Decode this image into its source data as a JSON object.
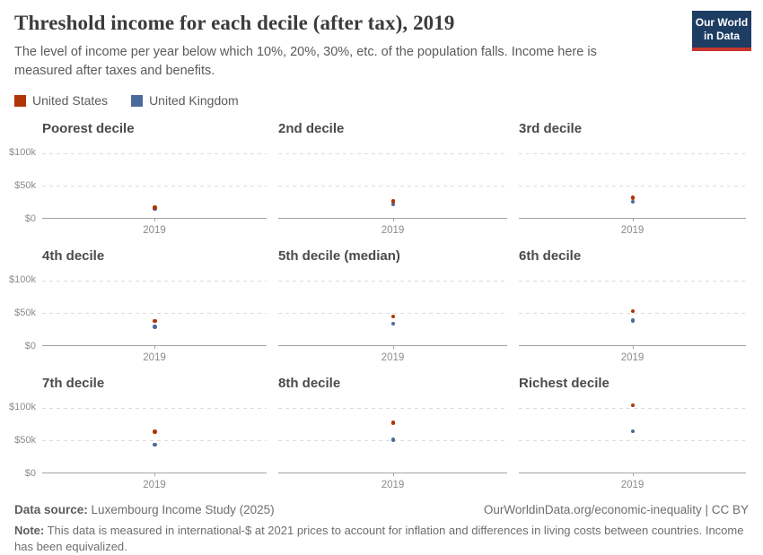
{
  "header": {
    "title": "Threshold income for each decile (after tax), 2019",
    "subtitle": "The level of income per year below which 10%, 20%, 30%, etc. of the population falls. Income here is measured after taxes and benefits.",
    "logo": {
      "line1": "Our World",
      "line2": "in Data",
      "bg_color": "#1d3d63",
      "accent_color": "#c8372d"
    }
  },
  "chart_data": {
    "type": "scatter",
    "title": "Threshold income for each decile (after tax), 2019",
    "x": [
      2019
    ],
    "x_tick_label": "2019",
    "y_tick_labels": [
      "$100k",
      "$50k",
      "$0"
    ],
    "y_tick_values": [
      100000,
      50000,
      0
    ],
    "ylim": [
      0,
      111000
    ],
    "grid": "horizontal-dashed",
    "legend_position": "top-left",
    "units": "international-$ per year",
    "series": [
      {
        "name": "United States",
        "key": "us",
        "color": "#b13507"
      },
      {
        "name": "United Kingdom",
        "key": "uk",
        "color": "#4c6a9c"
      }
    ],
    "panels": [
      {
        "title": "Poorest decile",
        "year": 2019,
        "values": {
          "us": 15000,
          "uk": 13500
        }
      },
      {
        "title": "2nd decile",
        "year": 2019,
        "values": {
          "us": 25000,
          "uk": 20000
        }
      },
      {
        "title": "3rd decile",
        "year": 2019,
        "values": {
          "us": 30000,
          "uk": 24500
        }
      },
      {
        "title": "4th decile",
        "year": 2019,
        "values": {
          "us": 36500,
          "uk": 27500
        }
      },
      {
        "title": "5th decile (median)",
        "year": 2019,
        "values": {
          "us": 43000,
          "uk": 32500
        }
      },
      {
        "title": "6th decile",
        "year": 2019,
        "values": {
          "us": 51500,
          "uk": 37000
        }
      },
      {
        "title": "7th decile",
        "year": 2019,
        "values": {
          "us": 61500,
          "uk": 42000
        }
      },
      {
        "title": "8th decile",
        "year": 2019,
        "values": {
          "us": 75000,
          "uk": 49500
        }
      },
      {
        "title": "Richest decile",
        "year": 2019,
        "values": {
          "us": 102000,
          "uk": 62000
        }
      }
    ]
  },
  "footer": {
    "datasource_label": "Data source:",
    "datasource": "Luxembourg Income Study (2025)",
    "link": "OurWorldinData.org/economic-inequality | CC BY",
    "note_label": "Note:",
    "note": "This data is measured in international-$ at 2021 prices to account for inflation and differences in living costs between countries. Income has been equivalized."
  }
}
